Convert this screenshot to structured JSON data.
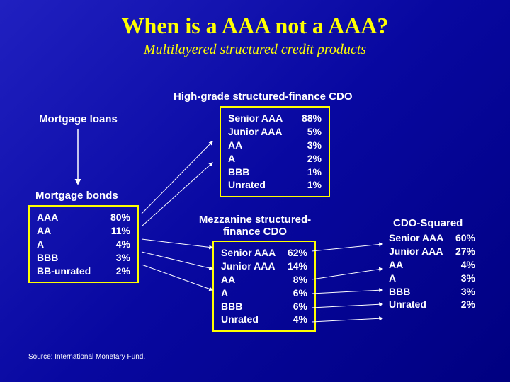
{
  "title": "When is a AAA not a AAA?",
  "subtitle": "Multilayered structured credit products",
  "labels": {
    "mortgage_loans": "Mortgage loans",
    "mortgage_bonds": "Mortgage bonds",
    "high_grade": "High-grade structured-finance CDO",
    "mezzanine": "Mezzanine structured-finance CDO",
    "cdo_squared": "CDO-Squared"
  },
  "mortgage_bonds": {
    "rows": [
      {
        "rating": "AAA",
        "pct": "80%"
      },
      {
        "rating": "AA",
        "pct": "11%"
      },
      {
        "rating": "A",
        "pct": "4%"
      },
      {
        "rating": "BBB",
        "pct": "3%"
      },
      {
        "rating": "BB-unrated",
        "pct": "2%"
      }
    ]
  },
  "high_grade": {
    "rows": [
      {
        "rating": "Senior AAA",
        "pct": "88%"
      },
      {
        "rating": "Junior AAA",
        "pct": "5%"
      },
      {
        "rating": "AA",
        "pct": "3%"
      },
      {
        "rating": "A",
        "pct": "2%"
      },
      {
        "rating": "BBB",
        "pct": "1%"
      },
      {
        "rating": "Unrated",
        "pct": "1%"
      }
    ]
  },
  "mezzanine": {
    "rows": [
      {
        "rating": "Senior AAA",
        "pct": "62%"
      },
      {
        "rating": "Junior AAA",
        "pct": "14%"
      },
      {
        "rating": "AA",
        "pct": "8%"
      },
      {
        "rating": "A",
        "pct": "6%"
      },
      {
        "rating": "BBB",
        "pct": "6%"
      },
      {
        "rating": "Unrated",
        "pct": "4%"
      }
    ]
  },
  "cdo_squared": {
    "rows": [
      {
        "rating": "Senior AAA",
        "pct": "60%"
      },
      {
        "rating": "Junior AAA",
        "pct": "27%"
      },
      {
        "rating": "AA",
        "pct": "4%"
      },
      {
        "rating": "A",
        "pct": "3%"
      },
      {
        "rating": "BBB",
        "pct": "3%"
      },
      {
        "rating": "Unrated",
        "pct": "2%"
      }
    ]
  },
  "source": "Source: International Monetary Fund.",
  "colors": {
    "accent": "#ffff00",
    "arrow": "#ffffff"
  }
}
